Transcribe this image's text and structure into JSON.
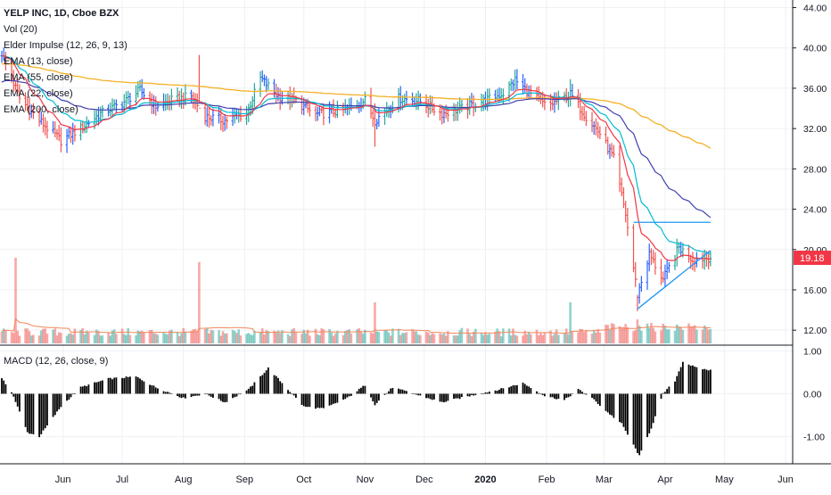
{
  "header": {
    "symbol_line": "YELP INC, 1D, Cboe BZX",
    "indicators": [
      "Vol (20)",
      "Elder Impulse (12, 26, 9, 13)",
      "EMA (13, close)",
      "EMA (55, close)",
      "EMA (22, close)",
      "EMA (200, close)"
    ],
    "macd_label": "MACD (12, 26, close, 9)"
  },
  "price_tag": {
    "value": "19.18",
    "color": "#f23645"
  },
  "colors": {
    "up": "#26a69a",
    "down": "#ef5350",
    "neutral": "#2962ff",
    "ema13": "#f23645",
    "ema22": "#00bcd4",
    "ema55": "#3f3faf",
    "ema200": "#f5b025",
    "volume_ma": "#f0875a",
    "trendline": "#2196f3",
    "macd_hist": "#000000"
  },
  "chart_data": [
    {
      "type": "line",
      "title": "",
      "x_axis": {
        "months": [
          "Jun",
          "Jul",
          "Aug",
          "Sep",
          "Oct",
          "Nov",
          "Dec",
          "2020",
          "Feb",
          "Mar",
          "Apr",
          "May",
          "Jun"
        ]
      },
      "y_axis": {
        "ticks": [
          "44.00",
          "40.00",
          "36.00",
          "32.00",
          "28.00",
          "24.00",
          "20.00",
          "16.00",
          "12.00"
        ],
        "ylim": [
          10.6,
          44.4
        ]
      },
      "grid": true,
      "price_path_anchors": [
        [
          "2019-05-01",
          39.5
        ],
        [
          "2019-05-10",
          35.0
        ],
        [
          "2019-05-20",
          32.8
        ],
        [
          "2019-05-31",
          30.8
        ],
        [
          "2019-06-10",
          32.0
        ],
        [
          "2019-06-20",
          33.5
        ],
        [
          "2019-07-01",
          34.5
        ],
        [
          "2019-07-10",
          35.8
        ],
        [
          "2019-07-18",
          34.2
        ],
        [
          "2019-07-26",
          34.8
        ],
        [
          "2019-08-05",
          35.2
        ],
        [
          "2019-08-12",
          33.2
        ],
        [
          "2019-08-22",
          32.8
        ],
        [
          "2019-09-02",
          33.5
        ],
        [
          "2019-09-09",
          37.0
        ],
        [
          "2019-09-18",
          35.2
        ],
        [
          "2019-09-26",
          34.8
        ],
        [
          "2019-10-07",
          33.4
        ],
        [
          "2019-10-21",
          33.8
        ],
        [
          "2019-11-01",
          34.8
        ],
        [
          "2019-11-06",
          32.8
        ],
        [
          "2019-11-18",
          35.0
        ],
        [
          "2019-11-28",
          34.8
        ],
        [
          "2019-12-10",
          33.5
        ],
        [
          "2019-12-20",
          34.0
        ],
        [
          "2020-01-01",
          34.8
        ],
        [
          "2020-01-10",
          35.5
        ],
        [
          "2020-01-16",
          36.8
        ],
        [
          "2020-01-24",
          35.4
        ],
        [
          "2020-02-01",
          34.2
        ],
        [
          "2020-02-13",
          35.4
        ],
        [
          "2020-02-21",
          33.2
        ],
        [
          "2020-02-28",
          31.5
        ],
        [
          "2020-03-06",
          29.0
        ],
        [
          "2020-03-12",
          23.5
        ],
        [
          "2020-03-18",
          15.5
        ],
        [
          "2020-03-24",
          19.5
        ],
        [
          "2020-03-31",
          17.0
        ],
        [
          "2020-04-08",
          20.2
        ],
        [
          "2020-04-15",
          19.0
        ],
        [
          "2020-04-23",
          19.2
        ]
      ],
      "series": [
        {
          "name": "EMA (13, close)",
          "color_key": "ema13"
        },
        {
          "name": "EMA (22, close)",
          "color_key": "ema22"
        },
        {
          "name": "EMA (55, close)",
          "color_key": "ema55"
        },
        {
          "name": "EMA (200, close)",
          "color_key": "ema200"
        }
      ],
      "spikes": [
        {
          "date": "2019-08-09",
          "high": 39.3,
          "low": 34.5
        },
        {
          "date": "2019-11-06",
          "high": 34.5,
          "low": 30.2
        },
        {
          "date": "2020-02-13",
          "high": 36.9,
          "low": 34.2
        },
        {
          "date": "2020-03-18",
          "high": 15.5,
          "low": 13.9
        }
      ],
      "trendlines": [
        {
          "from": [
            "2020-03-16",
            22.7
          ],
          "to": [
            "2020-04-24",
            22.7
          ]
        },
        {
          "from": [
            "2020-03-18",
            14.1
          ],
          "to": [
            "2020-04-24",
            19.9
          ]
        }
      ],
      "last_close": 19.18
    },
    {
      "type": "bar",
      "title": "Vol (20)",
      "description": "volume bars with 20-period moving average, relative heights",
      "spikes": [
        {
          "date": "2019-05-08",
          "rel": 1.0
        },
        {
          "date": "2019-08-09",
          "rel": 0.95
        },
        {
          "date": "2019-11-06",
          "rel": 0.48
        },
        {
          "date": "2020-02-13",
          "rel": 0.48
        },
        {
          "date": "2020-03-18",
          "rel": 0.28
        }
      ]
    },
    {
      "type": "bar",
      "title": "MACD (12, 26, close, 9)",
      "y_axis": {
        "ticks": [
          "1.00",
          "0.00",
          "-1.00"
        ],
        "ylim": [
          -1.55,
          1.05
        ]
      },
      "histogram_anchors": [
        [
          "2019-05-01",
          0.35
        ],
        [
          "2019-05-06",
          0.05
        ],
        [
          "2019-05-14",
          -0.9
        ],
        [
          "2019-05-20",
          -1.0
        ],
        [
          "2019-05-31",
          -0.3
        ],
        [
          "2019-06-10",
          0.15
        ],
        [
          "2019-06-24",
          0.35
        ],
        [
          "2019-07-08",
          0.4
        ],
        [
          "2019-07-18",
          0.15
        ],
        [
          "2019-08-01",
          -0.1
        ],
        [
          "2019-08-12",
          0.0
        ],
        [
          "2019-08-22",
          -0.2
        ],
        [
          "2019-09-03",
          0.1
        ],
        [
          "2019-09-13",
          0.6
        ],
        [
          "2019-09-23",
          0.1
        ],
        [
          "2019-10-01",
          -0.3
        ],
        [
          "2019-10-11",
          -0.35
        ],
        [
          "2019-10-23",
          -0.1
        ],
        [
          "2019-11-01",
          0.2
        ],
        [
          "2019-11-06",
          -0.25
        ],
        [
          "2019-11-15",
          0.15
        ],
        [
          "2019-11-29",
          -0.05
        ],
        [
          "2019-12-10",
          -0.2
        ],
        [
          "2019-12-24",
          -0.05
        ],
        [
          "2020-01-08",
          0.1
        ],
        [
          "2020-01-20",
          0.25
        ],
        [
          "2020-01-31",
          -0.05
        ],
        [
          "2020-02-10",
          -0.15
        ],
        [
          "2020-02-17",
          0.1
        ],
        [
          "2020-02-24",
          -0.1
        ],
        [
          "2020-03-02",
          -0.4
        ],
        [
          "2020-03-10",
          -0.7
        ],
        [
          "2020-03-19",
          -1.45
        ],
        [
          "2020-03-25",
          -0.8
        ],
        [
          "2020-03-31",
          0.0
        ],
        [
          "2020-04-06",
          0.3
        ],
        [
          "2020-04-10",
          0.75
        ],
        [
          "2020-04-17",
          0.6
        ],
        [
          "2020-04-24",
          0.55
        ]
      ]
    }
  ]
}
